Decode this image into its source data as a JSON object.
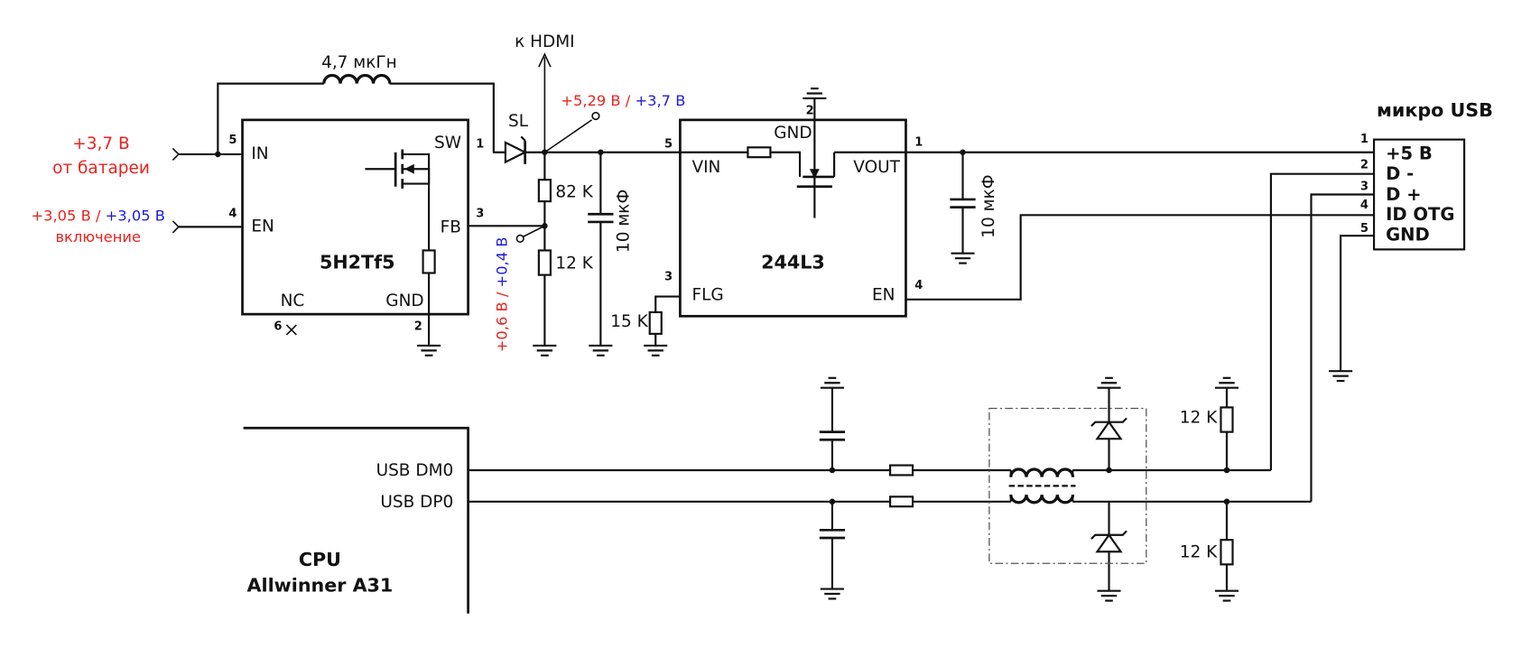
{
  "inductor_label": "4,7 мкГн",
  "hdmi_label": "к HDMI",
  "boost_output": {
    "red": "+5,29 В / ",
    "blue": "+3,7 В"
  },
  "diode_label": "SL",
  "battery": {
    "voltage": "+3,7 В",
    "caption": "от батареи"
  },
  "enable": {
    "red": "+3,05 В / ",
    "blue": "+3,05 В",
    "caption": "включение"
  },
  "feedback": {
    "red": "+0,6 В / ",
    "blue": "+0,4 В"
  },
  "converter": {
    "name": "5H2Tf5",
    "pins": [
      {
        "number": "5",
        "label": "IN"
      },
      {
        "number": "4",
        "label": "EN"
      },
      {
        "number": "1",
        "label": "SW"
      },
      {
        "number": "3",
        "label": "FB"
      },
      {
        "number": "6",
        "label": "NC"
      },
      {
        "number": "2",
        "label": "GND"
      }
    ]
  },
  "switch": {
    "name": "244L3",
    "pins": [
      {
        "number": "5",
        "label": "VIN"
      },
      {
        "number": "1",
        "label": "VOUT"
      },
      {
        "number": "2",
        "label": "GND"
      },
      {
        "number": "3",
        "label": "FLG"
      },
      {
        "number": "4",
        "label": "EN"
      }
    ]
  },
  "resistors": [
    "82 K",
    "12 K",
    "15 K",
    "12 K",
    "12 K"
  ],
  "capacitors": [
    "10 мкФ",
    "10 мкФ"
  ],
  "usb": {
    "title": "микро USB",
    "pins": [
      {
        "number": "1",
        "label": "+5 В"
      },
      {
        "number": "2",
        "label": "D -"
      },
      {
        "number": "3",
        "label": "D +"
      },
      {
        "number": "4",
        "label": "ID OTG"
      },
      {
        "number": "5",
        "label": "GND"
      }
    ]
  },
  "cpu": {
    "signals": [
      "USB DM0",
      "USB DP0"
    ],
    "title": "CPU",
    "model": "Allwinner A31"
  }
}
